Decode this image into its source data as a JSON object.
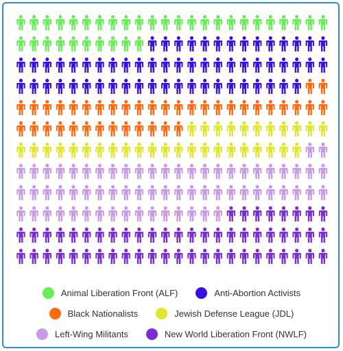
{
  "chart_data": {
    "type": "waffle",
    "columns": 24,
    "rows": 12,
    "unit": "person-icon",
    "series": [
      {
        "name": "Animal Liberation Front (ALF)",
        "count": 34,
        "color": "#66ee55"
      },
      {
        "name": "Anti-Abortion Activists",
        "count": 60,
        "color": "#3a10e0"
      },
      {
        "name": "Black Nationalists",
        "count": 39,
        "color": "#ff6a10"
      },
      {
        "name": "Jewish Defense League (JDL)",
        "count": 33,
        "color": "#dfe62b"
      },
      {
        "name": "Left-Wing Militants",
        "count": 66,
        "color": "#c79be8"
      },
      {
        "name": "New World Liberation Front (NWLF)",
        "count": 56,
        "color": "#7a2cd6"
      }
    ],
    "legend_placement": "bottom"
  },
  "legend": {
    "rows": [
      [
        0,
        1
      ],
      [
        2,
        3
      ],
      [
        4,
        5
      ]
    ]
  }
}
